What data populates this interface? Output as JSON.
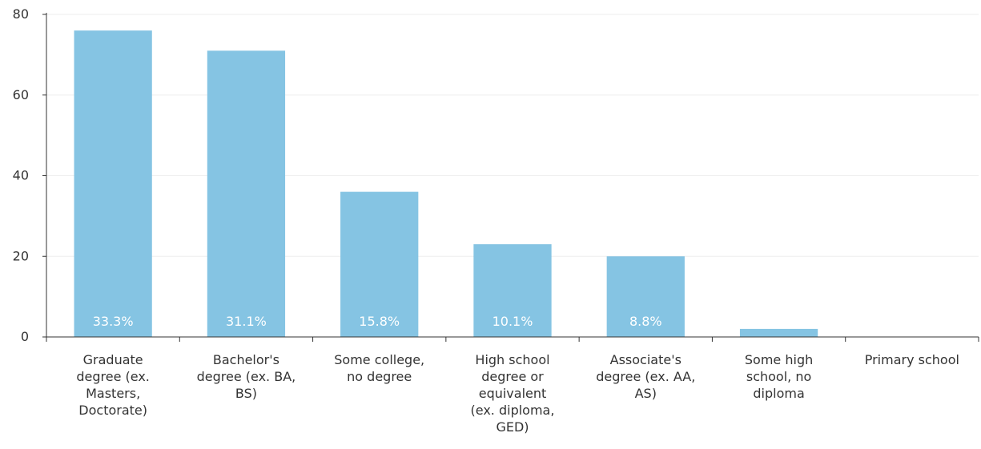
{
  "chart_data": {
    "type": "bar",
    "title": "",
    "xlabel": "",
    "ylabel": "",
    "ylim": [
      0,
      80
    ],
    "yticks": [
      0,
      20,
      40,
      60,
      80
    ],
    "grid": true,
    "bar_color": "#85c4e3",
    "categories": [
      [
        "Graduate",
        "degree (ex.",
        "Masters,",
        "Doctorate)"
      ],
      [
        "Bachelor's",
        "degree (ex. BA,",
        "BS)"
      ],
      [
        "Some college,",
        "no degree"
      ],
      [
        "High school",
        "degree or",
        "equivalent",
        "(ex. diploma,",
        "GED)"
      ],
      [
        "Associate's",
        "degree (ex. AA,",
        "AS)"
      ],
      [
        "Some high",
        "school, no",
        "diploma"
      ],
      [
        "Primary school"
      ]
    ],
    "values": [
      76,
      71,
      36,
      23,
      20,
      2,
      0
    ],
    "data_labels": [
      "33.3%",
      "31.1%",
      "15.8%",
      "10.1%",
      "8.8%",
      "",
      ""
    ]
  }
}
